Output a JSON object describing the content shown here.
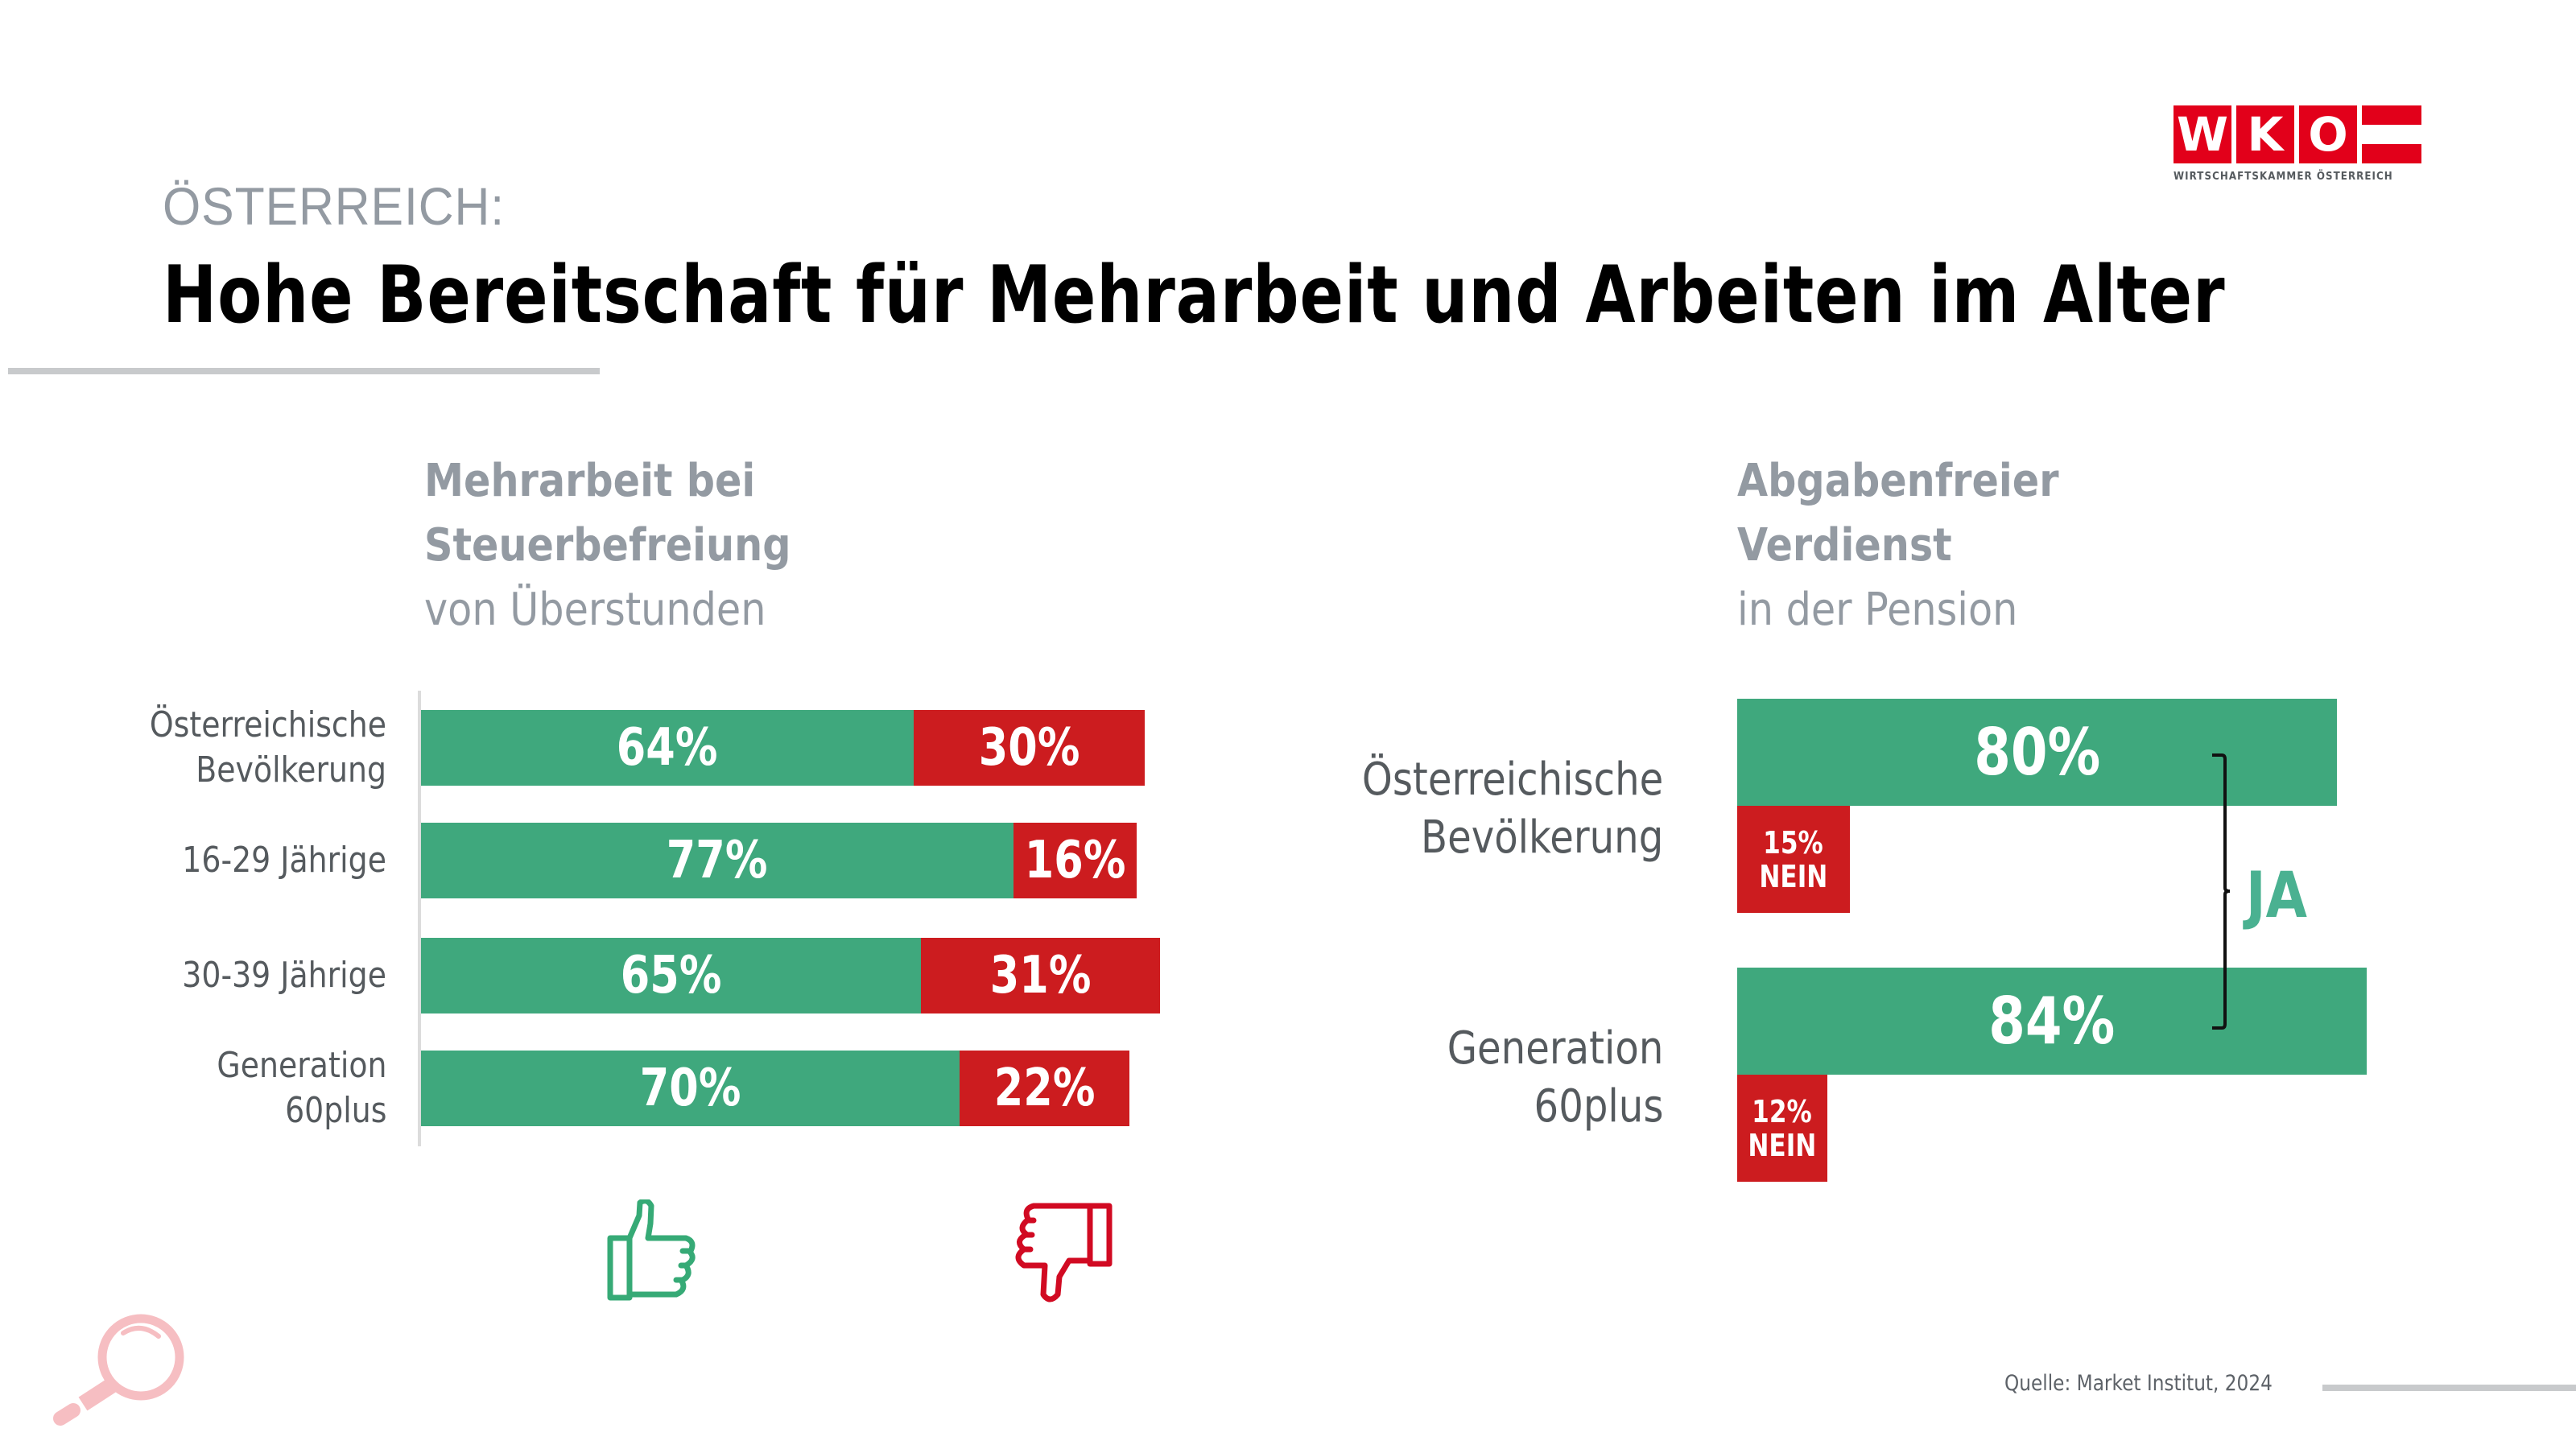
{
  "header": {
    "kicker": "ÖSTERREICH:",
    "title": "Hohe Bereitschaft für Mehrarbeit und Arbeiten im Alter"
  },
  "logo": {
    "letters": [
      "W",
      "K",
      "O"
    ],
    "subtitle": "WIRTSCHAFTSKAMMER ÖSTERREICH",
    "brand_color": "#e2001a"
  },
  "colors": {
    "yes": "#3fa87d",
    "no": "#cc1c1f",
    "heading_gray": "#939aa2",
    "label_gray": "#555a5e"
  },
  "chart_data": [
    {
      "type": "bar",
      "orientation": "horizontal-stacked",
      "title": "Mehrarbeit bei Steuerbefreiung",
      "subtitle": "von Überstunden",
      "title_lines": [
        "Mehrarbeit bei",
        "Steuerbefreiung"
      ],
      "categories": [
        [
          "Österreichische",
          "Bevölkerung"
        ],
        [
          "16-29 Jährige"
        ],
        [
          "30-39 Jährige"
        ],
        [
          "Generation",
          "60plus"
        ]
      ],
      "series": [
        {
          "name": "Ja",
          "icon": "thumbs-up",
          "values": [
            64,
            77,
            65,
            70
          ],
          "labels": [
            "64%",
            "77%",
            "65%",
            "70%"
          ]
        },
        {
          "name": "Nein",
          "icon": "thumbs-down",
          "values": [
            30,
            16,
            31,
            22
          ],
          "labels": [
            "30%",
            "16%",
            "31%",
            "22%"
          ]
        }
      ],
      "xlabel": "",
      "ylabel": "",
      "unit": "%",
      "grid": false,
      "legend": "icons below bars"
    },
    {
      "type": "bar",
      "orientation": "horizontal-grouped",
      "title": "Abgabenfreier Verdienst",
      "subtitle": "in der Pension",
      "title_lines": [
        "Abgabenfreier",
        "Verdienst"
      ],
      "categories": [
        [
          "Österreichische",
          "Bevölkerung"
        ],
        [
          "Generation",
          "60plus"
        ]
      ],
      "series": [
        {
          "name": "JA",
          "values": [
            80,
            84
          ],
          "labels": [
            "80%",
            "84%"
          ]
        },
        {
          "name": "NEIN",
          "values": [
            15,
            12
          ],
          "labels": [
            "15%",
            "12%"
          ]
        }
      ],
      "annotation": "JA",
      "nein_label": "NEIN",
      "xlabel": "",
      "ylabel": "",
      "unit": "%",
      "grid": false,
      "legend": "none"
    }
  ],
  "footer": {
    "source": "Quelle:  Market Institut, 2024"
  },
  "icons": {
    "thumbs_up": "thumbs-up-icon",
    "thumbs_down": "thumbs-down-icon",
    "magnifier": "magnifier-icon"
  }
}
